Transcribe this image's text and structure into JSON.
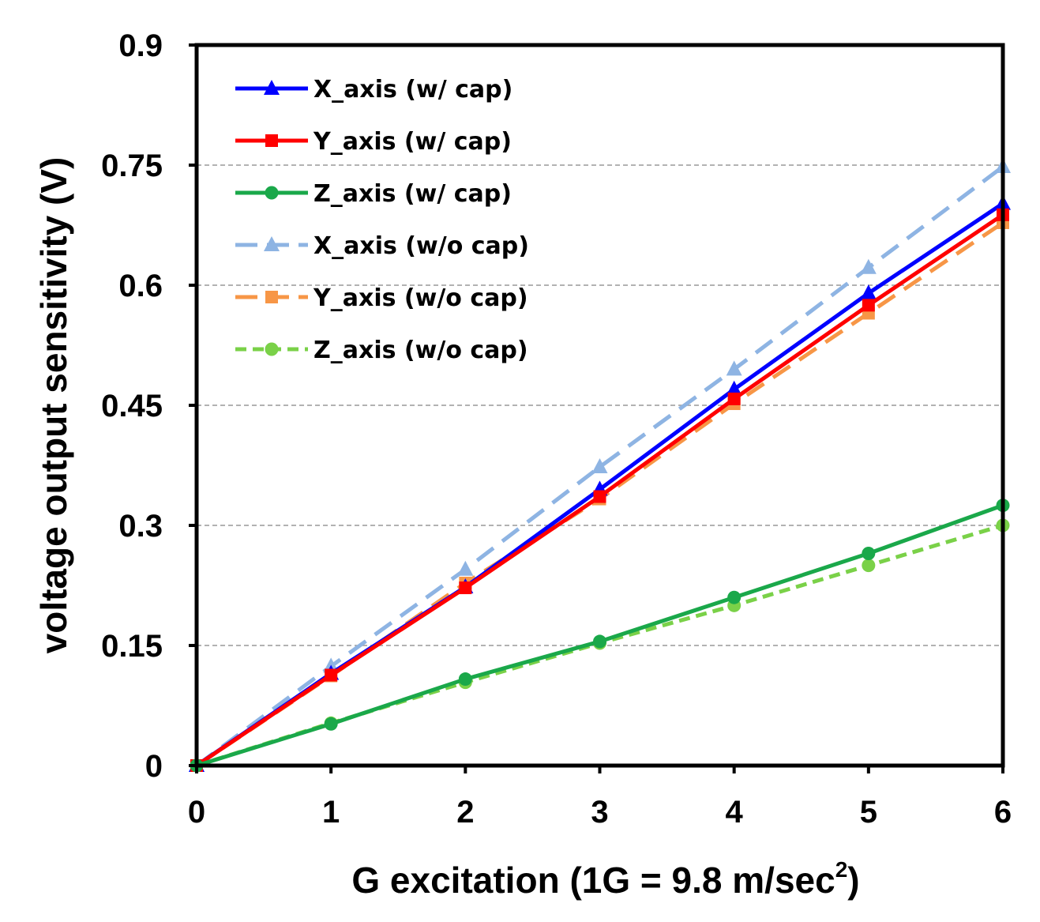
{
  "chart_data": {
    "type": "line",
    "xlabel": "G excitation (1G = 9.8 m/sec",
    "xlabel_sup": "2",
    "xlabel_close": ")",
    "ylabel": "voltage output sensitivity (V)",
    "xlim": [
      0,
      6
    ],
    "ylim": [
      0,
      0.9
    ],
    "x_ticks": [
      0,
      1,
      2,
      3,
      4,
      5,
      6
    ],
    "x_tick_labels": [
      "0",
      "1",
      "2",
      "3",
      "4",
      "5",
      "6"
    ],
    "y_ticks": [
      0,
      0.15,
      0.3,
      0.45,
      0.6,
      0.75,
      0.9
    ],
    "y_tick_labels": [
      "0",
      "0.15",
      "0.3",
      "0.45",
      "0.6",
      "0.75",
      "0.9"
    ],
    "grid": "horizontal dashed",
    "legend_position": "top-left",
    "x": [
      0,
      1,
      2,
      3,
      4,
      5,
      6
    ],
    "series": [
      {
        "name": "X_axis (w/ cap)",
        "color": "#0000ff",
        "dash": "solid",
        "marker": "triangle",
        "values": [
          0,
          0.115,
          0.223,
          0.345,
          0.47,
          0.59,
          0.702
        ]
      },
      {
        "name": "Y_axis (w/ cap)",
        "color": "#ff0000",
        "dash": "solid",
        "marker": "square",
        "values": [
          0,
          0.113,
          0.222,
          0.336,
          0.458,
          0.575,
          0.688
        ]
      },
      {
        "name": "Z_axis (w/ cap)",
        "color": "#1aa84a",
        "dash": "solid",
        "marker": "circle",
        "values": [
          0,
          0.052,
          0.108,
          0.155,
          0.21,
          0.265,
          0.325
        ]
      },
      {
        "name": "X_axis (w/o cap)",
        "color": "#8eb4e3",
        "dash": "long-dash",
        "marker": "triangle",
        "values": [
          0,
          0.124,
          0.245,
          0.373,
          0.495,
          0.622,
          0.748
        ]
      },
      {
        "name": "Y_axis (w/o cap)",
        "color": "#f79646",
        "dash": "long-dash",
        "marker": "square",
        "values": [
          0,
          0.112,
          0.228,
          0.333,
          0.452,
          0.565,
          0.678
        ]
      },
      {
        "name": "Z_axis (w/o cap)",
        "color": "#7ad148",
        "dash": "short-dash",
        "marker": "circle",
        "values": [
          0,
          0.053,
          0.104,
          0.153,
          0.2,
          0.25,
          0.3
        ]
      }
    ]
  }
}
